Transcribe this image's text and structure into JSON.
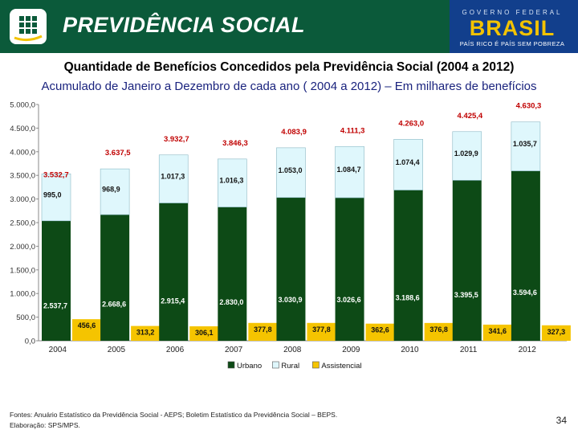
{
  "header": {
    "brand": "PREVIDÊNCIA SOCIAL",
    "gov_label": "GOVERNO FEDERAL",
    "gov_brand": "BRASIL",
    "gov_slogan": "PAÍS RICO É PAÍS SEM POBREZA",
    "colors": {
      "green": "#0b5a3a",
      "blue": "#123f8c",
      "yellow": "#f3c300"
    }
  },
  "title": "Quantidade de Benefícios Concedidos pela Previdência Social (2004 a 2012)",
  "subtitle": "Acumulado de Janeiro a Dezembro de cada ano ( 2004 a 2012) – Em milhares de benefícios",
  "chart_data": {
    "type": "bar",
    "categories": [
      "2004",
      "2005",
      "2006",
      "2007",
      "2008",
      "2009",
      "2010",
      "2011",
      "2012"
    ],
    "series": [
      {
        "name": "Urbano",
        "color": "#0d4a16",
        "values": [
          2537.7,
          2668.6,
          2915.4,
          2830.0,
          3030.9,
          3026.6,
          3188.6,
          3395.5,
          3594.6
        ],
        "labels": [
          "2.537,7",
          "2.668,6",
          "2.915,4",
          "2.830,0",
          "3.030,9",
          "3.026,6",
          "3.188,6",
          "3.395,5",
          "3.594,6"
        ]
      },
      {
        "name": "Rural",
        "color": "#dff7fc",
        "values": [
          995.0,
          968.9,
          1017.3,
          1016.3,
          1053.0,
          1084.7,
          1074.4,
          1029.9,
          1035.7
        ],
        "labels": [
          "995,0",
          "968,9",
          "1.017,3",
          "1.016,3",
          "1.053,0",
          "1.084,7",
          "1.074,4",
          "1.029,9",
          "1.035,7"
        ]
      },
      {
        "name": "Assistencial",
        "color": "#f5c400",
        "values": [
          456.6,
          313.2,
          306.1,
          377.8,
          377.8,
          362.6,
          376.8,
          341.6,
          327.3
        ],
        "labels": [
          "456,6",
          "313,2",
          "306,1",
          "377,8",
          "377,8",
          "362,6",
          "376,8",
          "341,6",
          "327,3"
        ]
      }
    ],
    "totals": [
      3532.7,
      3637.5,
      3932.7,
      3846.3,
      4083.9,
      4111.3,
      4263.0,
      4425.4,
      4630.3
    ],
    "total_labels": [
      "3.532,7",
      "3.637,5",
      "3.932,7",
      "3.846,3",
      "4.083,9",
      "4.111,3",
      "4.263,0",
      "4.425,4",
      "4.630,3"
    ],
    "total_label_color": "#c00000",
    "yticks": [
      0,
      500,
      1000,
      1500,
      2000,
      2500,
      3000,
      3500,
      4000,
      4500,
      5000
    ],
    "ytick_labels": [
      "0,0",
      "500,0",
      "1.000,0",
      "1.500,0",
      "2.000,0",
      "2.500,0",
      "3.000,0",
      "3.500,0",
      "4.000,0",
      "4.500,0",
      "5.000,0"
    ],
    "ylim": [
      0,
      5000
    ],
    "legend_position": "bottom-center",
    "title": "",
    "xlabel": "",
    "ylabel": ""
  },
  "footer": {
    "sources": "Fontes: Anuário Estatístico da Previdência Social - AEPS; Boletim Estatístico da Previdência Social – BEPS.",
    "prepared_by": "Elaboração: SPS/MPS."
  },
  "page_number": "34"
}
